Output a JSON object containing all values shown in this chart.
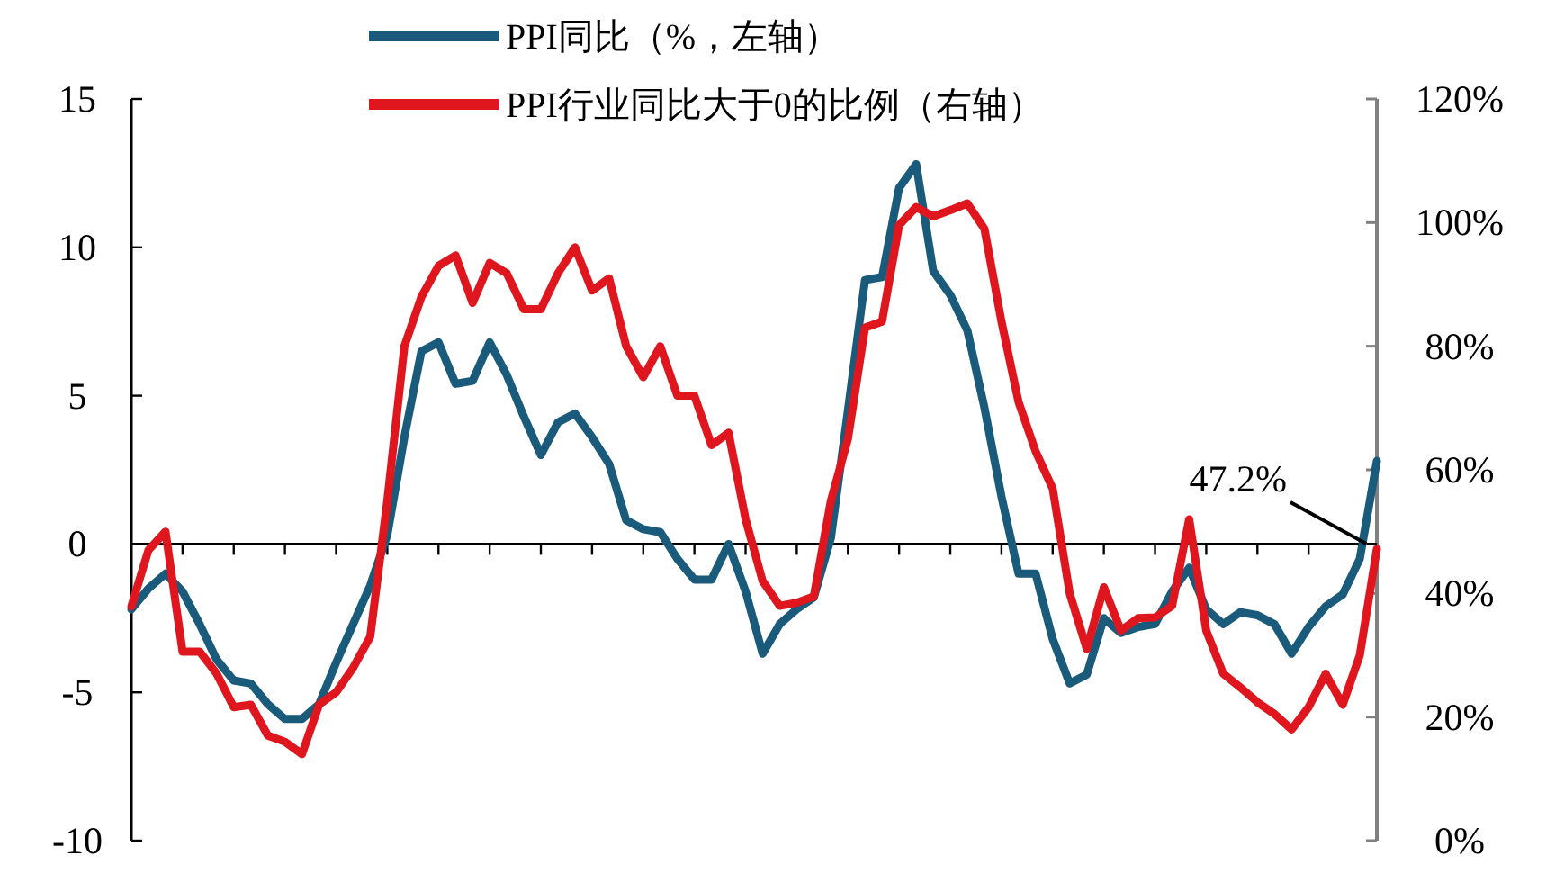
{
  "chart_data": {
    "type": "line",
    "categories": [
      null,
      null,
      null,
      null,
      null,
      null,
      null,
      null,
      null,
      null,
      null,
      null,
      null,
      null,
      null,
      null,
      null,
      null,
      null,
      null,
      null,
      null,
      null,
      null,
      null,
      null,
      null,
      null,
      null,
      null,
      null,
      null,
      null,
      null,
      null,
      null,
      null,
      null,
      null,
      null,
      null,
      null,
      null,
      null,
      null,
      null,
      null,
      null,
      null,
      null,
      null,
      null,
      null,
      null,
      null,
      null,
      null,
      null,
      null,
      null,
      null,
      null,
      null,
      null,
      null,
      null,
      null,
      null,
      null,
      null,
      null,
      null,
      null,
      null
    ],
    "series": [
      {
        "name": "PPI同比（%，左轴）",
        "color": "#1a5a7a",
        "values": [
          -2.2,
          -1.5,
          -1.0,
          -1.6,
          -2.7,
          -3.9,
          -4.6,
          -4.7,
          -5.4,
          -5.9,
          -5.9,
          -5.4,
          -4.0,
          -2.7,
          -1.4,
          0.3,
          3.6,
          6.5,
          6.8,
          5.4,
          5.5,
          6.8,
          5.7,
          4.3,
          3.0,
          4.1,
          4.4,
          3.6,
          2.7,
          0.8,
          0.5,
          0.4,
          -0.5,
          -1.2,
          -1.2,
          0.0,
          -1.6,
          -3.7,
          -2.7,
          -2.2,
          -1.8,
          0.2,
          4.5,
          8.9,
          9.0,
          12.0,
          12.8,
          9.2,
          8.4,
          7.2,
          4.6,
          1.6,
          -1.0,
          -1.0,
          -3.2,
          -4.7,
          -4.4,
          -2.5,
          -3.0,
          -2.8,
          -2.7,
          -1.6,
          -0.8,
          -2.2,
          -2.7,
          -2.3,
          -2.4,
          -2.7,
          -3.7,
          -2.8,
          -2.1,
          -1.7,
          -0.5,
          2.8
        ]
      },
      {
        "name": "PPI行业同比大于0的比例（右轴）",
        "color": "#e0161e",
        "axis": "y2",
        "values": [
          37.9,
          47,
          50,
          30.6,
          30.6,
          27,
          21.6,
          22,
          17,
          16,
          14,
          22,
          24,
          28,
          33,
          55,
          80,
          88,
          93,
          94.7,
          87,
          93.5,
          91.8,
          86,
          86,
          91.8,
          96,
          89,
          91,
          80,
          75,
          80,
          72,
          72,
          64,
          66,
          52,
          42,
          38,
          38.5,
          39.5,
          55,
          65,
          83,
          84,
          99.6,
          102.5,
          101,
          102,
          103.1,
          99,
          84,
          71,
          63,
          57,
          40,
          31,
          41,
          34,
          36,
          36.1,
          38,
          52,
          34,
          27,
          24.8,
          22.4,
          20.5,
          18,
          21.6,
          27,
          22,
          30,
          47.2
        ],
        "value_labels": [
          null,
          null,
          null,
          null,
          null,
          null,
          null,
          null,
          null,
          null,
          null,
          null,
          null,
          null,
          null,
          null,
          null,
          null,
          null,
          null,
          null,
          null,
          null,
          null,
          null,
          null,
          null,
          null,
          null,
          null,
          null,
          null,
          null,
          null,
          null,
          null,
          null,
          null,
          null,
          null,
          null,
          null,
          null,
          null,
          null,
          null,
          null,
          null,
          null,
          null,
          null,
          null,
          null,
          null,
          null,
          null,
          null,
          null,
          null,
          null,
          null,
          null,
          null,
          null,
          null,
          null,
          null,
          null,
          null,
          null,
          null,
          null,
          null,
          "47.2%"
        ]
      }
    ],
    "ylim": [
      -10,
      15
    ],
    "yticks": [
      -10,
      -5,
      0,
      5,
      10,
      15
    ],
    "y2lim": [
      0,
      120
    ],
    "y2ticks": [
      {
        "value": 0,
        "label": "0%"
      },
      {
        "value": 20,
        "label": "20%"
      },
      {
        "value": 40,
        "label": "40%"
      },
      {
        "value": 60,
        "label": "60%"
      },
      {
        "value": 80,
        "label": "80%"
      },
      {
        "value": 100,
        "label": "100%"
      },
      {
        "value": 120,
        "label": "120%"
      }
    ],
    "legend": "top"
  }
}
